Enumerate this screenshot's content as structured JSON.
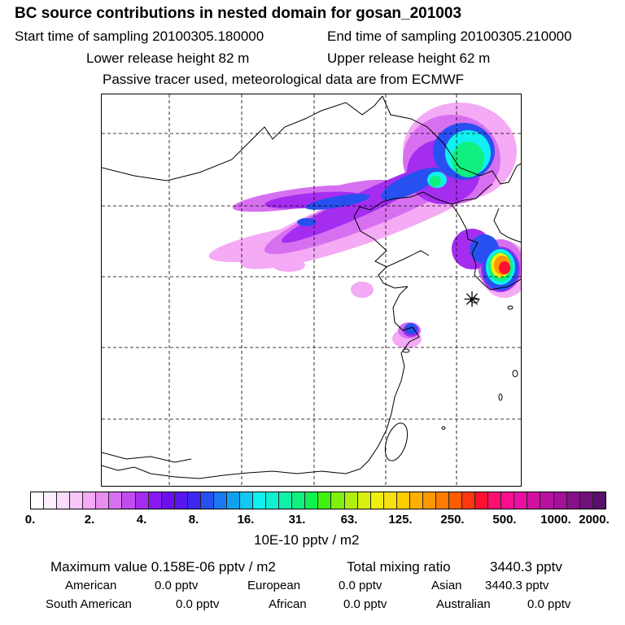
{
  "title": "BC  source contributions in nested domain for gosan_201003",
  "header": {
    "start_label": "Start time of sampling 20100305.180000",
    "end_label": "End time of sampling 20100305.210000",
    "lower_label": "Lower release height   82 m",
    "upper_label": "Upper release height   62 m",
    "tracer_note": "Passive tracer used, meteorological data are from ECMWF"
  },
  "legend": {
    "tick_labels": [
      "0.",
      "2.",
      "4.",
      "8.",
      "16.",
      "31.",
      "63.",
      "125.",
      "250.",
      "500.",
      "1000.",
      "2000."
    ],
    "units": "10E-10 pptv / m2",
    "colors": [
      "#ffffff",
      "#fdeefd",
      "#fbdcfb",
      "#f8c6f8",
      "#f4aaf4",
      "#e98ef0",
      "#d770f0",
      "#c24cf0",
      "#a52df0",
      "#8a18f0",
      "#6c10f0",
      "#5618f0",
      "#3c28f0",
      "#2850f0",
      "#1a78f0",
      "#10a0f0",
      "#10c8f0",
      "#10f0f0",
      "#10f0d0",
      "#10f0a8",
      "#10f080",
      "#10f050",
      "#40f010",
      "#80f010",
      "#b0f010",
      "#d8f010",
      "#f0f010",
      "#f8e010",
      "#ffcc00",
      "#ffb000",
      "#ff9800",
      "#ff7c00",
      "#ff5c00",
      "#ff3810",
      "#ff1030",
      "#ff1070",
      "#f81090",
      "#e810a0",
      "#d010a0",
      "#b810a0",
      "#a01098",
      "#881088",
      "#701078",
      "#581068"
    ]
  },
  "stats": {
    "max_label": "Maximum value  0.158E-06 pptv / m2",
    "total_label": "Total mixing ratio",
    "total_value": "3440.3 pptv",
    "regions": [
      {
        "name": "American",
        "value": "0.0 pptv"
      },
      {
        "name": "European",
        "value": "0.0 pptv"
      },
      {
        "name": "Asian",
        "value": "3440.3 pptv"
      },
      {
        "name": "South American",
        "value": "0.0 pptv"
      },
      {
        "name": "African",
        "value": "0.0 pptv"
      },
      {
        "name": "Australian",
        "value": "0.0 pptv"
      }
    ]
  },
  "map": {
    "receptor_symbol": "✳",
    "colors": {
      "purple": "#a52df0",
      "blue": "#2850f0",
      "cyan": "#10f0f0",
      "green": "#10f080",
      "yellow": "#f0f010",
      "orange": "#ff9800",
      "red": "#ff1030",
      "pink": "#f4aaf4",
      "violet": "#d770f0"
    }
  }
}
